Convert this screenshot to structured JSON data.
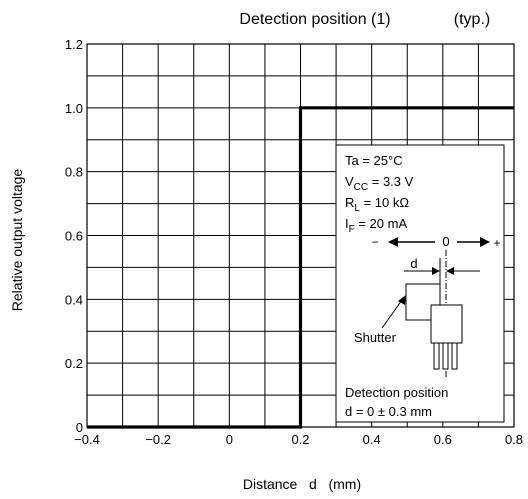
{
  "chart_data": {
    "type": "line",
    "title": "Detection position (1)",
    "title_note": "(typ.)",
    "xlabel": "Distance   d   (mm)",
    "ylabel": "Relative output voltage",
    "xlim": [
      -0.4,
      0.8
    ],
    "ylim": [
      0,
      1.2
    ],
    "grid": true,
    "x_ticks": [
      -0.4,
      -0.2,
      0,
      0.2,
      0.4,
      0.6,
      0.8
    ],
    "x_tick_labels": [
      "−0.4",
      "−0.2",
      "0",
      "0.2",
      "0.4",
      "0.6",
      "0.8"
    ],
    "y_ticks": [
      0,
      0.2,
      0.4,
      0.6,
      0.8,
      1.0,
      1.2
    ],
    "y_tick_labels": [
      "0",
      "0.2",
      "0.4",
      "0.6",
      "0.8",
      "1.0",
      "1.2"
    ],
    "series": [
      {
        "x": [
          -0.4,
          0.2,
          0.2,
          0.8
        ],
        "y": [
          0,
          0,
          1.0,
          1.0
        ]
      }
    ]
  },
  "conditions": {
    "ta": {
      "main": "Ta = 25°C"
    },
    "vcc": {
      "pre": "V",
      "sub": "CC",
      "post": " = 3.3 V"
    },
    "rl": {
      "pre": "R",
      "sub": "L",
      "post": " = 10 kΩ"
    },
    "if": {
      "pre": "I",
      "sub": "F",
      "post": " = 20 mA"
    }
  },
  "diagram": {
    "minus": "−",
    "zero": "0",
    "plus": "+",
    "d_label": "d",
    "shutter_label": "Shutter"
  },
  "detection_note": {
    "line1": "Detection position",
    "line2": "d = 0 ± 0.3 mm"
  }
}
